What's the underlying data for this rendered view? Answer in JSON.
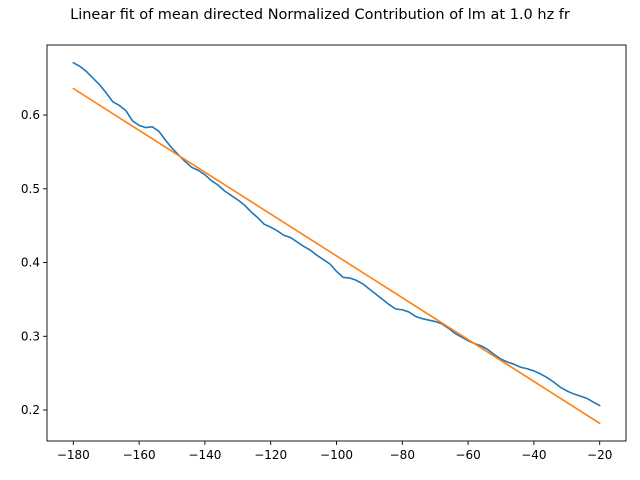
{
  "chart_data": {
    "type": "line",
    "title": "Linear fit of mean directed Normalized Contribution of lm at 1.0 hz fr",
    "xlabel": "",
    "ylabel": "",
    "xlim": [
      -188,
      -12
    ],
    "ylim": [
      0.158,
      0.695
    ],
    "x_ticks": [
      -180,
      -160,
      -140,
      -120,
      -100,
      -80,
      -60,
      -40,
      -20
    ],
    "x_tick_labels": [
      "−180",
      "−160",
      "−140",
      "−120",
      "−100",
      "−80",
      "−60",
      "−40",
      "−20"
    ],
    "y_ticks": [
      0.2,
      0.3,
      0.4,
      0.5,
      0.6
    ],
    "y_tick_labels": [
      "0.2",
      "0.3",
      "0.4",
      "0.5",
      "0.6"
    ],
    "grid": false,
    "legend": "none",
    "series": [
      {
        "color": "#1f77b4",
        "x": [
          -180,
          -178,
          -176,
          -174,
          -172,
          -170,
          -168,
          -166,
          -164,
          -162,
          -160,
          -158,
          -156,
          -154,
          -152,
          -150,
          -148,
          -146,
          -144,
          -142,
          -140,
          -138,
          -136,
          -134,
          -132,
          -130,
          -128,
          -126,
          -124,
          -122,
          -120,
          -118,
          -116,
          -114,
          -112,
          -110,
          -108,
          -106,
          -104,
          -102,
          -100,
          -98,
          -96,
          -94,
          -92,
          -90,
          -88,
          -86,
          -84,
          -82,
          -80,
          -78,
          -76,
          -74,
          -72,
          -70,
          -68,
          -66,
          -64,
          -62,
          -60,
          -58,
          -56,
          -54,
          -52,
          -50,
          -48,
          -46,
          -44,
          -42,
          -40,
          -38,
          -36,
          -34,
          -32,
          -30,
          -28,
          -26,
          -24,
          -22,
          -20
        ],
        "y": [
          0.671,
          0.666,
          0.659,
          0.65,
          0.641,
          0.63,
          0.618,
          0.613,
          0.606,
          0.592,
          0.586,
          0.583,
          0.584,
          0.578,
          0.566,
          0.555,
          0.546,
          0.537,
          0.529,
          0.525,
          0.519,
          0.511,
          0.505,
          0.497,
          0.491,
          0.485,
          0.478,
          0.469,
          0.461,
          0.452,
          0.448,
          0.443,
          0.437,
          0.434,
          0.428,
          0.422,
          0.417,
          0.41,
          0.404,
          0.398,
          0.388,
          0.38,
          0.379,
          0.376,
          0.371,
          0.364,
          0.357,
          0.35,
          0.343,
          0.337,
          0.336,
          0.333,
          0.327,
          0.324,
          0.322,
          0.32,
          0.317,
          0.311,
          0.304,
          0.299,
          0.294,
          0.29,
          0.287,
          0.282,
          0.275,
          0.269,
          0.265,
          0.262,
          0.258,
          0.256,
          0.253,
          0.249,
          0.244,
          0.238,
          0.231,
          0.226,
          0.222,
          0.219,
          0.216,
          0.211,
          0.206
        ]
      },
      {
        "color": "#ff7f0e",
        "x": [
          -180,
          -20
        ],
        "y": [
          0.636,
          0.182
        ]
      }
    ]
  }
}
